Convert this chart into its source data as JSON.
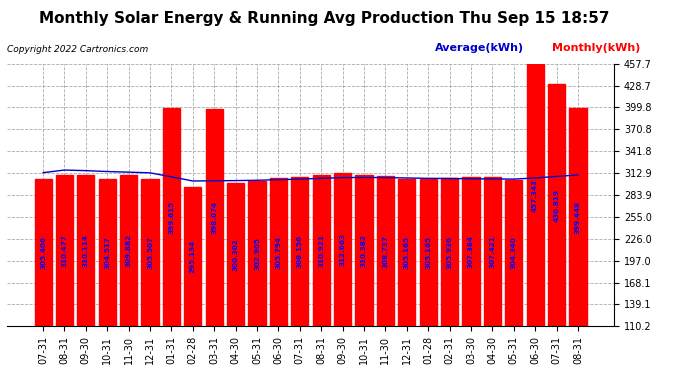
{
  "title": "Monthly Solar Energy & Running Avg Production Thu Sep 15 18:57",
  "copyright": "Copyright 2022 Cartronics.com",
  "legend_avg": "Average(kWh)",
  "legend_monthly": "Monthly(kWh)",
  "categories": [
    "07-31",
    "08-31",
    "09-30",
    "10-31",
    "11-30",
    "12-31",
    "01-31",
    "02-28",
    "03-31",
    "04-30",
    "05-31",
    "06-30",
    "07-31",
    "08-31",
    "09-30",
    "10-31",
    "11-30",
    "12-31",
    "01-28",
    "02-31",
    "03-30",
    "04-30",
    "05-31",
    "06-30",
    "07-31",
    "08-31"
  ],
  "monthly_values": [
    305.406,
    310.477,
    310.114,
    304.517,
    309.882,
    305.507,
    399.615,
    295.134,
    398.074,
    300.302,
    302.905,
    305.794,
    308.156,
    310.921,
    312.663,
    310.382,
    308.737,
    305.165,
    305.165,
    305.936,
    307.384,
    307.421,
    304.34,
    457.343,
    430.819,
    399.448
  ],
  "bar_labels": [
    "305.406",
    "310.477",
    "310.114",
    "304.517",
    "309.882",
    "305.507",
    "399.615",
    "295.134",
    "398.074",
    "300.302",
    "302.905",
    "305.794",
    "308.156",
    "310.921",
    "312.663",
    "310.382",
    "308.737",
    "305.165",
    "305.165",
    "305.936",
    "307.384",
    "307.421",
    "304.340",
    "457.343",
    "430.819",
    "399.448"
  ],
  "average_values": [
    313.5,
    317.0,
    316.2,
    315.0,
    314.2,
    313.3,
    308.0,
    302.5,
    302.8,
    303.0,
    303.5,
    304.2,
    305.0,
    306.0,
    307.0,
    307.2,
    307.0,
    306.5,
    306.0,
    305.8,
    305.5,
    305.2,
    305.0,
    306.5,
    308.5,
    310.5
  ],
  "bar_color": "#FF0000",
  "line_color": "#0000CC",
  "text_color_bar": "#0000FF",
  "background_color": "#FFFFFF",
  "grid_color": "#AAAAAA",
  "ylim_min": 110.2,
  "ylim_max": 457.7,
  "yticks": [
    110.2,
    139.1,
    168.1,
    197.0,
    226.0,
    255.0,
    283.9,
    312.9,
    341.8,
    370.8,
    399.8,
    428.7,
    457.7
  ],
  "title_fontsize": 11,
  "tick_fontsize": 7,
  "bar_label_fontsize": 5.2,
  "copyright_fontsize": 6.5,
  "legend_fontsize": 8
}
